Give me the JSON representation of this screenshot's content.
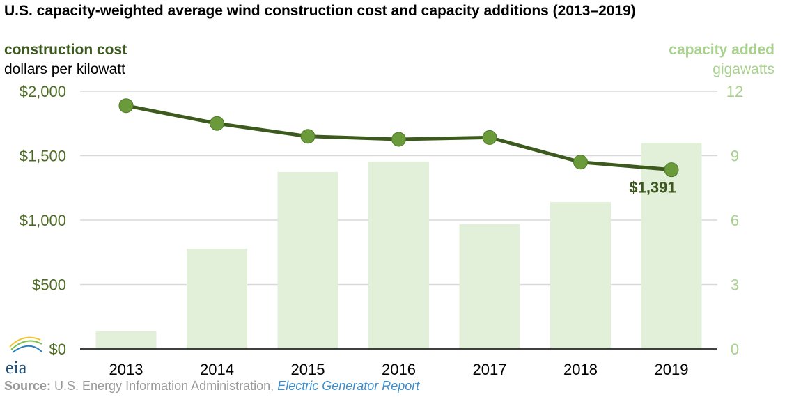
{
  "title": "U.S. capacity-weighted average wind construction cost and capacity additions (2013–2019)",
  "left_header": {
    "series": "construction cost",
    "unit": "dollars per kilowatt"
  },
  "right_header": {
    "series": "capacity added",
    "unit": "gigawatts"
  },
  "source": {
    "label": "Source:",
    "text": " U.S. Energy Information Administration, ",
    "link": "Electric Generator Report"
  },
  "logo_text": "eia",
  "colors": {
    "line": "#3d5a1e",
    "marker": "#6a9a3a",
    "bar": "#e2efd9",
    "left_axis": "#4e6b24",
    "right_axis": "#a9d18e",
    "grid": "#d9d9d9"
  },
  "chart_data": {
    "type": "bar+line",
    "categories": [
      "2013",
      "2014",
      "2015",
      "2016",
      "2017",
      "2018",
      "2019"
    ],
    "series": [
      {
        "name": "construction cost",
        "type": "line",
        "axis": "left",
        "values": [
          1888,
          1750,
          1650,
          1627,
          1641,
          1450,
          1391
        ]
      },
      {
        "name": "capacity added",
        "type": "bar",
        "axis": "right",
        "values": [
          0.84,
          4.67,
          8.24,
          8.73,
          5.81,
          6.84,
          9.6
        ]
      }
    ],
    "left_axis": {
      "range": [
        0,
        2000
      ],
      "ticks": [
        0,
        500,
        1000,
        1500,
        2000
      ],
      "tick_labels": [
        "$0",
        "$500",
        "$1,000",
        "$1,500",
        "$2,000"
      ]
    },
    "right_axis": {
      "range": [
        0,
        12
      ],
      "ticks": [
        0,
        3,
        6,
        9,
        12
      ],
      "tick_labels": [
        "0",
        "3",
        "6",
        "9",
        "12"
      ]
    },
    "annotations": [
      {
        "category": "2019",
        "text": "$1,391"
      }
    ],
    "grid": true
  }
}
